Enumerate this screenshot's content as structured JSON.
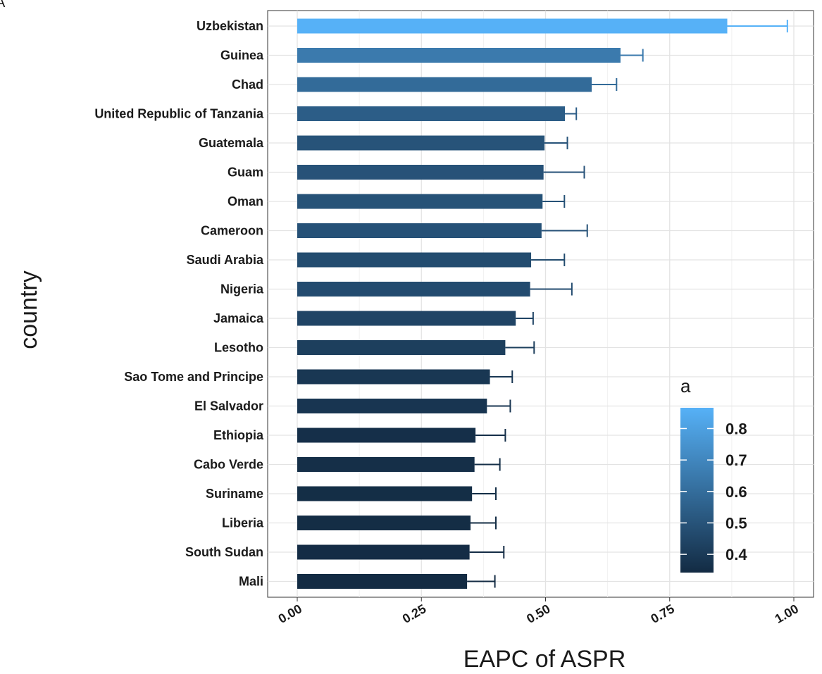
{
  "panel_tag": "A",
  "chart_data": {
    "type": "bar",
    "orientation": "horizontal",
    "title": "",
    "xlabel": "EAPC of ASPR",
    "ylabel": "country",
    "xlim": [
      0,
      1.0
    ],
    "x_ticks": [
      0.0,
      0.25,
      0.5,
      0.75,
      1.0
    ],
    "x_tick_labels": [
      "0.00",
      "0.25",
      "0.50",
      "0.75",
      "1.00"
    ],
    "grid": true,
    "categories": [
      "Uzbekistan",
      "Guinea",
      "Chad",
      "United Republic of Tanzania",
      "Guatemala",
      "Guam",
      "Oman",
      "Cameroon",
      "Saudi Arabia",
      "Nigeria",
      "Jamaica",
      "Lesotho",
      "Sao Tome and Principe",
      "El Salvador",
      "Ethiopia",
      "Cabo Verde",
      "Suriname",
      "Liberia",
      "South Sudan",
      "Mali"
    ],
    "values": [
      0.866,
      0.651,
      0.593,
      0.539,
      0.498,
      0.496,
      0.494,
      0.492,
      0.471,
      0.469,
      0.44,
      0.419,
      0.388,
      0.382,
      0.359,
      0.357,
      0.352,
      0.349,
      0.347,
      0.342
    ],
    "error_upper": [
      0.987,
      0.696,
      0.643,
      0.562,
      0.544,
      0.578,
      0.538,
      0.584,
      0.538,
      0.553,
      0.475,
      0.477,
      0.433,
      0.429,
      0.419,
      0.408,
      0.4,
      0.4,
      0.416,
      0.398
    ],
    "legend": {
      "title": "a",
      "placement": "bottom-right",
      "range": [
        0.342,
        0.866
      ],
      "ticks": [
        0.4,
        0.5,
        0.6,
        0.7,
        0.8
      ],
      "tick_labels": [
        "0.4",
        "0.5",
        "0.6",
        "0.7",
        "0.8"
      ],
      "color_low": "#132B43",
      "color_high": "#56B1F7"
    }
  }
}
